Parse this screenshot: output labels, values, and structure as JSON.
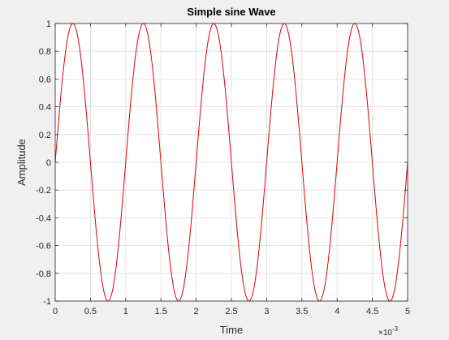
{
  "chart_data": {
    "type": "line",
    "title": "Simple sine Wave",
    "xlabel": "Time",
    "ylabel": "Amplitude",
    "x_exponent": {
      "prefix": "×10",
      "power": "-3"
    },
    "xlim": [
      0,
      5
    ],
    "ylim": [
      -1,
      1
    ],
    "x_ticks": [
      0,
      0.5,
      1,
      1.5,
      2,
      2.5,
      3,
      3.5,
      4,
      4.5,
      5
    ],
    "y_ticks": [
      -1,
      -0.8,
      -0.6,
      -0.4,
      -0.2,
      0,
      0.2,
      0.4,
      0.6,
      0.8,
      1
    ],
    "x_tick_labels": [
      "0",
      "0.5",
      "1",
      "1.5",
      "2",
      "2.5",
      "3",
      "3.5",
      "4",
      "4.5",
      "5"
    ],
    "y_tick_labels": [
      "-1",
      "-0.8",
      "-0.6",
      "-0.4",
      "-0.2",
      "0",
      "0.2",
      "0.4",
      "0.6",
      "0.8",
      "1"
    ],
    "grid": true,
    "series": [
      {
        "color": "#e00000",
        "function": "sine",
        "amplitude": 1,
        "period": 1,
        "phase": 0,
        "x_start": 0,
        "x_end": 5
      }
    ]
  }
}
